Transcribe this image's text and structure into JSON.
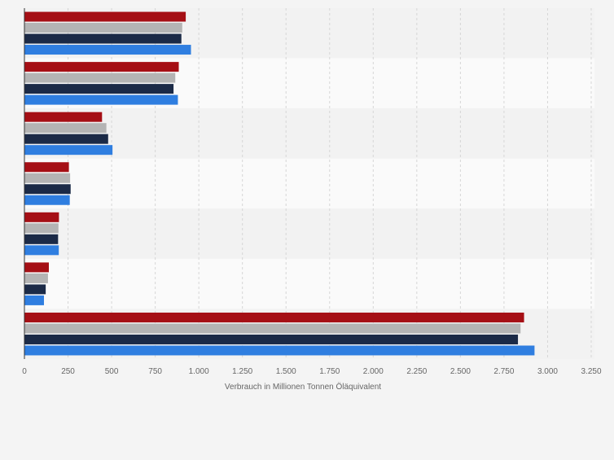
{
  "colors": {
    "page_background": "#f4f4f4",
    "band_dark": "#f2f2f2",
    "band_light": "#fafafa",
    "gridline": "#d6d6d6",
    "axis_line": "#333333",
    "tick_text": "#666666",
    "label_text": "#666666"
  },
  "chart_data": {
    "type": "bar",
    "orientation": "horizontal",
    "title": "",
    "xlabel": "Verbrauch in Millionen Tonnen Öläquivalent",
    "ylabel": "",
    "xlim": [
      0,
      3250
    ],
    "x_ticks": [
      0,
      250,
      500,
      750,
      1000,
      1250,
      1500,
      1750,
      2000,
      2250,
      2500,
      2750,
      3000,
      3250
    ],
    "x_tick_labels": [
      "0",
      "250",
      "500",
      "750",
      "1.000",
      "1.250",
      "1.500",
      "1.750",
      "2.000",
      "2.250",
      "2.500",
      "2.750",
      "3.000",
      "3.250"
    ],
    "grid": true,
    "legend": "none",
    "categories": [
      "",
      "",
      "",
      "",
      "",
      "",
      ""
    ],
    "series": [
      {
        "color": "#a50f15",
        "values": [
          925,
          885,
          445,
          255,
          198,
          140,
          2865
        ]
      },
      {
        "color": "#b4b4b4",
        "values": [
          905,
          865,
          470,
          262,
          195,
          135,
          2845
        ]
      },
      {
        "color": "#1b2a47",
        "values": [
          900,
          855,
          480,
          265,
          193,
          122,
          2830
        ]
      },
      {
        "color": "#2f7ee0",
        "values": [
          955,
          880,
          505,
          260,
          197,
          112,
          2925
        ]
      }
    ]
  }
}
